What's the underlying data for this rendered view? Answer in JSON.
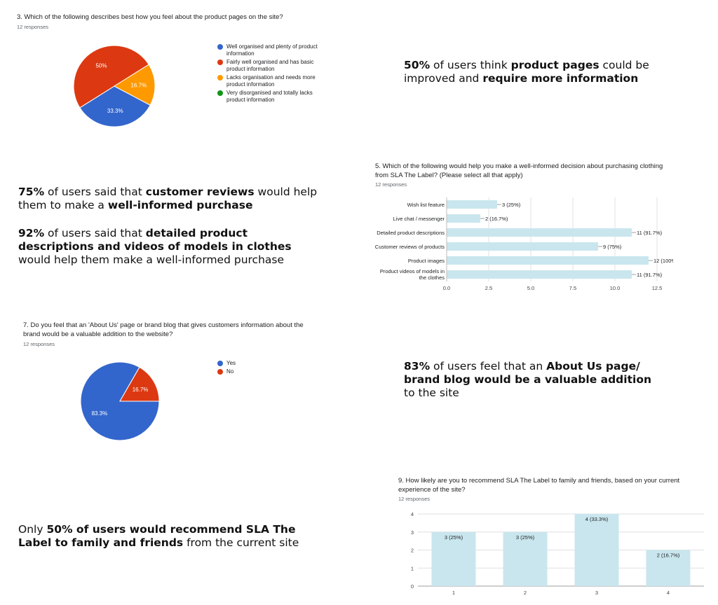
{
  "colors": {
    "blue": "#3366cc",
    "red": "#dc3912",
    "orange": "#ff9900",
    "green": "#109618",
    "bar": "#c9e6ee"
  },
  "q3": {
    "title": "3. Which of the following describes best how you feel about the product pages on the site?",
    "responses": "12 responses"
  },
  "q5": {
    "title_line1": "5. Which of the following would help you make a well-informed decision about purchasing clothing",
    "title_line2": "from SLA The Label? (Please select all that apply)",
    "responses": "12 responses"
  },
  "q7": {
    "title_line1": "7. Do you feel that an 'About Us' page or brand blog that gives customers information about the",
    "title_line2": "brand would be a valuable addition to the website?",
    "responses": "12 responses"
  },
  "q9": {
    "title_line1": "9. How likely are you to recommend SLA The Label to family and friends, based on your current",
    "title_line2": "experience of the site?",
    "responses": "12 responses"
  },
  "insights": {
    "i1": {
      "a": "50%",
      "b": " of users think ",
      "c": "product pages",
      "d": " could be",
      "e": "improved and ",
      "f": "require more information"
    },
    "i2": {
      "a": "75%",
      "b": " of users said that ",
      "c": "customer reviews",
      "d": " would help",
      "e": "them to make a ",
      "f": "well-informed purchase"
    },
    "i3": {
      "a": "92%",
      "b": " of users said that ",
      "c": "detailed product",
      "d": "descriptions and videos of models in clothes",
      "e": "would help them make a well-informed purchase"
    },
    "i4": {
      "a": "83%",
      "b": " of users feel that an ",
      "c": "About Us page/",
      "d": "brand blog would be a valuable addition",
      "e": "to the site"
    },
    "i5": {
      "a": "Only ",
      "b": "50% of users would recommend SLA The",
      "c": "Label to family and friends",
      "d": " from the current site"
    }
  },
  "chart_data": [
    {
      "type": "pie",
      "title": "3. Which of the following describes best how you feel about the product pages on the site?",
      "legend": "right",
      "slices": [
        {
          "label": "Well organised and plenty of product information",
          "value": 33.3,
          "display": "33.3%",
          "color": "#3366cc"
        },
        {
          "label": "Fairly well organised and has basic product information",
          "value": 50,
          "display": "50%",
          "color": "#dc3912"
        },
        {
          "label": "Lacks organisation and needs more product information",
          "value": 16.7,
          "display": "16.7%",
          "color": "#ff9900"
        },
        {
          "label": "Very disorganised and totally lacks product information",
          "value": 0,
          "display": "",
          "color": "#109618"
        }
      ]
    },
    {
      "type": "bar",
      "orientation": "horizontal",
      "title": "5. Which of the following would help you make a well-informed decision about purchasing clothing from SLA The Label? (Please select all that apply)",
      "categories": [
        "Wish list feature",
        "Live chat / messenger",
        "Detailed product descriptions",
        "Customer reviews of products",
        "Product images",
        "Product videos of models in the clothes"
      ],
      "values": [
        3,
        2,
        11,
        9,
        12,
        11
      ],
      "labels": [
        "3 (25%)",
        "2 (16.7%)",
        "11 (91.7%)",
        "9 (75%)",
        "12 (100%)",
        "11 (91.7%)"
      ],
      "xlim": [
        0,
        12.5
      ],
      "xticks": [
        "0.0",
        "2.5",
        "5.0",
        "7.5",
        "10.0",
        "12.5"
      ],
      "grid": true
    },
    {
      "type": "pie",
      "title": "7. Do you feel that an 'About Us' page or brand blog that gives customers information about the brand would be a valuable addition to the website?",
      "legend": "right",
      "slices": [
        {
          "label": "Yes",
          "value": 83.3,
          "display": "83.3%",
          "color": "#3366cc"
        },
        {
          "label": "No",
          "value": 16.7,
          "display": "16.7%",
          "color": "#dc3912"
        }
      ]
    },
    {
      "type": "bar",
      "orientation": "vertical",
      "title": "9. How likely are you to recommend SLA The Label to family and friends, based on your current experience of the site?",
      "categories": [
        "1",
        "2",
        "3",
        "4"
      ],
      "values": [
        3,
        3,
        4,
        2
      ],
      "labels": [
        "3 (25%)",
        "3 (25%)",
        "4 (33.3%)",
        "2 (16.7%)"
      ],
      "ylim": [
        0,
        4
      ],
      "yticks": [
        "0",
        "1",
        "2",
        "3",
        "4"
      ],
      "grid": true
    }
  ]
}
